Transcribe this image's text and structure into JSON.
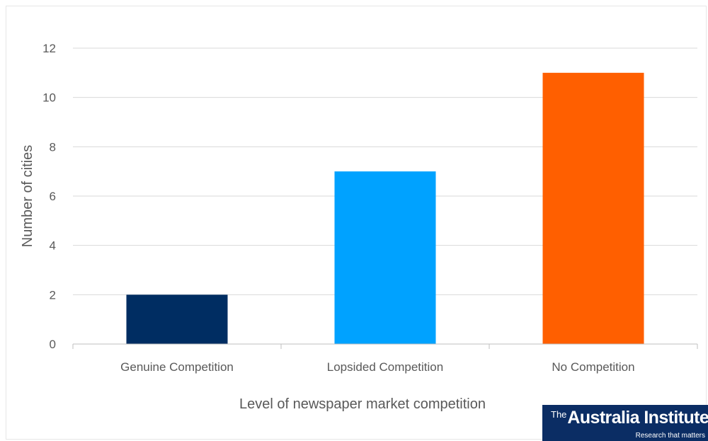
{
  "chart_data": {
    "type": "bar",
    "categories": [
      "Genuine Competition",
      "Lopsided Competition",
      "No Competition"
    ],
    "values": [
      2,
      7,
      11
    ],
    "colors": [
      "#002d62",
      "#00a2ff",
      "#ff5f00"
    ],
    "xlabel": "Level of newspaper market competition",
    "ylabel": "Number of cities",
    "yticks": [
      0,
      2,
      4,
      6,
      8,
      10,
      12
    ],
    "ylim": [
      0,
      12
    ],
    "grid": true,
    "legend": "none"
  },
  "logo": {
    "prefix": "The",
    "name": "Australia Institute",
    "tagline": "Research that matters"
  }
}
